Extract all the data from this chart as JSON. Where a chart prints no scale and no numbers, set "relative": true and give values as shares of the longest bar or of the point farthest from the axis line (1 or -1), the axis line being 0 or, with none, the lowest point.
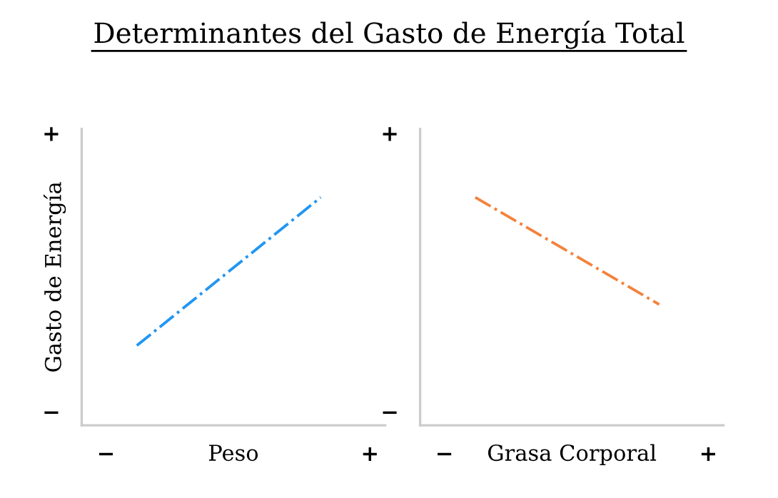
{
  "chart_data": [
    {
      "type": "line",
      "title": "Determinantes del Gasto de Energía Total",
      "xlabel": "Peso",
      "ylabel": "Gasto de Energía",
      "relative": true,
      "categories": [
        null,
        null
      ],
      "line_style": "dashdot",
      "marker": "none",
      "series": [
        {
          "color": "#2196f3",
          "values": [
            0.35,
            1
          ]
        }
      ],
      "annotations": [
        "−",
        "+",
        "−",
        "+"
      ]
    },
    {
      "type": "line",
      "xlabel": "Grasa Corporal",
      "relative": true,
      "categories": [
        null,
        null
      ],
      "line_style": "dashdot",
      "marker": "none",
      "series": [
        {
          "color": "#f4823c",
          "values": [
            1,
            0.53
          ]
        }
      ],
      "annotations": [
        "−",
        "+",
        "−",
        "+"
      ]
    }
  ]
}
